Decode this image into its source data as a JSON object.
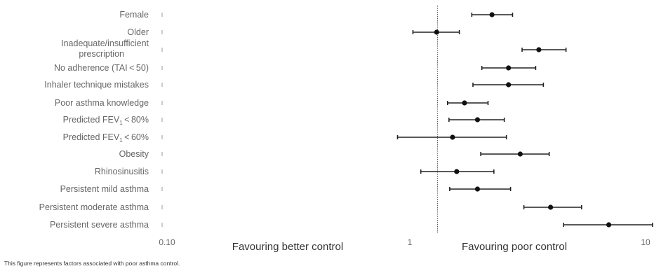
{
  "chart_data": {
    "type": "forest",
    "x_scale": "log",
    "xlim": [
      0.1,
      10
    ],
    "reference_line": 1.3,
    "x_ticks": [
      {
        "value": 0.1,
        "label": "0.10"
      },
      {
        "value": 1,
        "label": "1"
      },
      {
        "value": 10,
        "label": "10"
      }
    ],
    "direction_labels": {
      "left": "Favouring better control",
      "right": "Favouring poor control"
    },
    "rows": [
      {
        "label": "Female",
        "sub": "",
        "suffix": "",
        "estimate": 2.18,
        "lower": 1.8,
        "upper": 2.65
      },
      {
        "label": "Older",
        "sub": "",
        "suffix": "",
        "estimate": 1.29,
        "lower": 1.03,
        "upper": 1.6
      },
      {
        "label": "Inadequate/insufficient",
        "label2": "prescription",
        "sub": "",
        "suffix": "",
        "estimate": 3.4,
        "lower": 2.9,
        "upper": 4.4
      },
      {
        "label": "No adherence (TAI < 50)",
        "sub": "",
        "suffix": "",
        "estimate": 2.55,
        "lower": 1.98,
        "upper": 3.3
      },
      {
        "label": "Inhaler technique mistakes",
        "sub": "",
        "suffix": "",
        "estimate": 2.55,
        "lower": 1.82,
        "upper": 3.55
      },
      {
        "label": "Poor asthma knowledge",
        "sub": "",
        "suffix": "",
        "estimate": 1.68,
        "lower": 1.43,
        "upper": 2.1
      },
      {
        "label": "Predicted FEV",
        "sub": "1",
        "suffix": " < 80%",
        "estimate": 1.9,
        "lower": 1.45,
        "upper": 2.45
      },
      {
        "label": "Predicted FEV",
        "sub": "1",
        "suffix": " < 60%",
        "estimate": 1.5,
        "lower": 0.89,
        "upper": 2.5
      },
      {
        "label": "Obesity",
        "sub": "",
        "suffix": "",
        "estimate": 2.85,
        "lower": 1.96,
        "upper": 3.75
      },
      {
        "label": "Rhinosinusitis",
        "sub": "",
        "suffix": "",
        "estimate": 1.56,
        "lower": 1.11,
        "upper": 2.22
      },
      {
        "label": "Persistent mild asthma",
        "sub": "",
        "suffix": "",
        "estimate": 1.9,
        "lower": 1.46,
        "upper": 2.6
      },
      {
        "label": "Persistent moderate asthma",
        "sub": "",
        "suffix": "",
        "estimate": 3.8,
        "lower": 2.95,
        "upper": 5.1
      },
      {
        "label": "Persistent severe asthma",
        "sub": "",
        "suffix": "",
        "estimate": 6.6,
        "lower": 4.3,
        "upper": 10
      }
    ]
  },
  "caption": "This figure represents factors associated with poor asthma control."
}
